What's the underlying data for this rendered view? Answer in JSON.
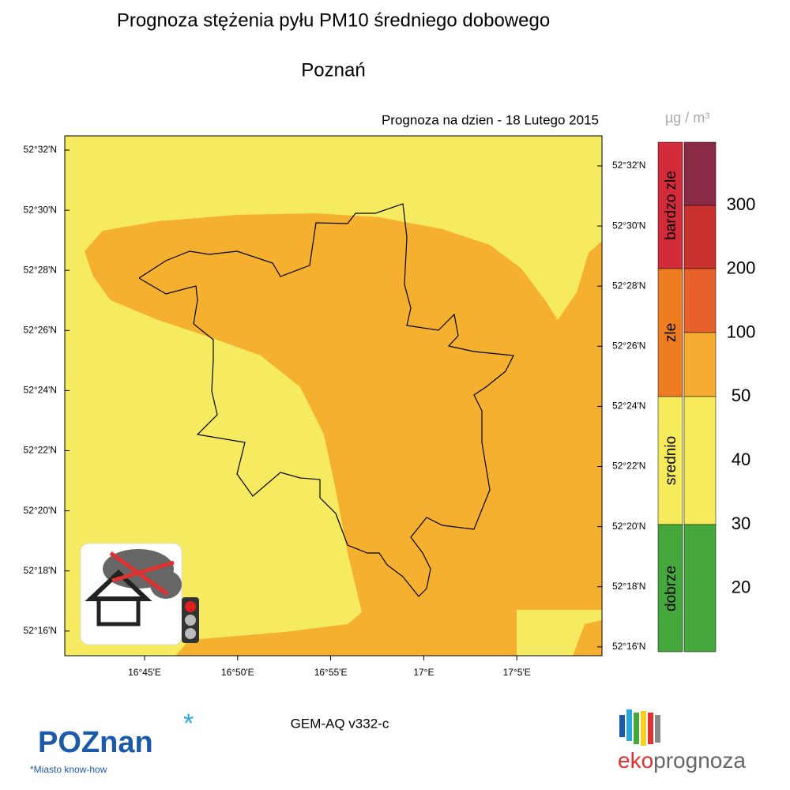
{
  "header": {
    "title": "Prognoza stężenia pyłu PM10 średniego dobowego",
    "city": "Poznań"
  },
  "map": {
    "date_label": "Prognoza na dzien -  18 Lutego 2015",
    "lat_labels": [
      "52°32'N",
      "52°30'N",
      "52°28'N",
      "52°26'N",
      "52°24'N",
      "52°22'N",
      "52°20'N",
      "52°18'N",
      "52°16'N"
    ],
    "lon_labels": [
      "16°45'E",
      "16°50'E",
      "16°55'E",
      "17°E",
      "17°5'E"
    ]
  },
  "legend": {
    "unit": "µg / m³",
    "categories": [
      "bardzo zle",
      "zle",
      "srednio",
      "dobrze"
    ],
    "thresholds": [
      300,
      200,
      100,
      50,
      40,
      30,
      20
    ]
  },
  "footer": {
    "model": "GEM-AQ v332-c",
    "logo_left": "POZnan",
    "logo_left_tagline": "*Miasto know-how",
    "logo_right_a": "eko",
    "logo_right_b": "prognoza"
  }
}
